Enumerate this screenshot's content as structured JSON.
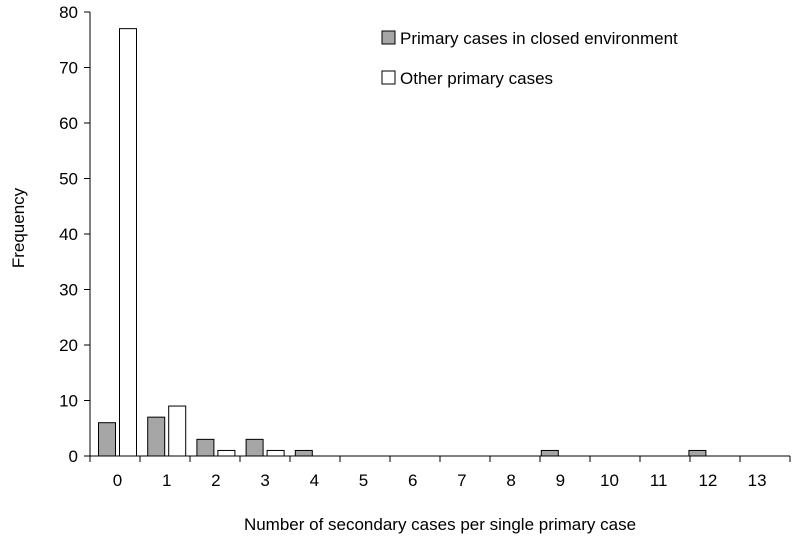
{
  "chart_data": {
    "type": "bar",
    "title": "",
    "xlabel": "Number of secondary cases per single primary case",
    "ylabel": "Frequency",
    "ylim": [
      0,
      80
    ],
    "yticks": [
      0,
      10,
      20,
      30,
      40,
      50,
      60,
      70,
      80
    ],
    "categories": [
      "0",
      "1",
      "2",
      "3",
      "4",
      "5",
      "6",
      "7",
      "8",
      "9",
      "10",
      "11",
      "12",
      "13"
    ],
    "series": [
      {
        "name": "Primary cases in closed environment",
        "color": "#a6a6a6",
        "values": [
          6,
          7,
          3,
          3,
          1,
          0,
          0,
          0,
          0,
          1,
          0,
          0,
          1,
          0
        ]
      },
      {
        "name": "Other primary cases",
        "color": "#ffffff",
        "values": [
          77,
          9,
          1,
          1,
          0,
          0,
          0,
          0,
          0,
          0,
          0,
          0,
          0,
          0
        ]
      }
    ],
    "grid": false,
    "legend_position": "top-right"
  }
}
